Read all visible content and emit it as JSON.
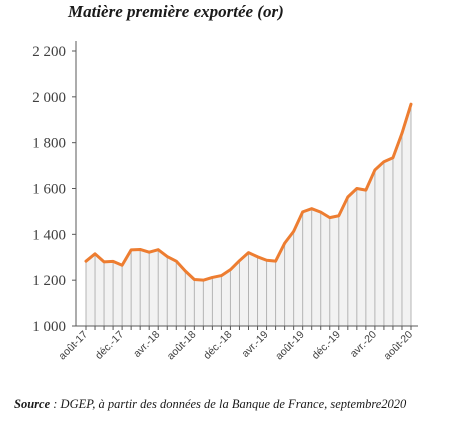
{
  "chart_data": {
    "type": "area",
    "title": "Matière première exportée (or)",
    "xlabel": "",
    "ylabel": "",
    "ylim": [
      1000,
      2200
    ],
    "yticks": [
      1000,
      1200,
      1400,
      1600,
      1800,
      2000,
      2200
    ],
    "ytick_labels": [
      "1 000",
      "1 200",
      "1 400",
      "1 600",
      "1 800",
      "2 000",
      "2 200"
    ],
    "categories": [
      "août-17",
      "sept.-17",
      "oct.-17",
      "nov.-17",
      "déc.-17",
      "janv.-18",
      "févr.-18",
      "mars-18",
      "avr.-18",
      "mai-18",
      "juin-18",
      "juil.-18",
      "août-18",
      "sept.-18",
      "oct.-18",
      "nov.-18",
      "déc.-18",
      "janv.-19",
      "févr.-19",
      "mars-19",
      "avr.-19",
      "mai-19",
      "juin-19",
      "juil.-19",
      "août-19",
      "sept.-19",
      "oct.-19",
      "nov.-19",
      "déc.-19",
      "janv.-20",
      "févr.-20",
      "mars-20",
      "avr.-20",
      "mai-20",
      "juin-20",
      "juil.-20",
      "août-20"
    ],
    "xtick_labels": [
      "août-17",
      "déc.-17",
      "avr.-18",
      "août-18",
      "déc.-18",
      "avr.-19",
      "août-19",
      "déc.-19",
      "avr.-20",
      "août-20"
    ],
    "series": [
      {
        "values": [
          1283,
          1315,
          1280,
          1282,
          1265,
          1332,
          1334,
          1322,
          1333,
          1303,
          1283,
          1240,
          1203,
          1200,
          1212,
          1220,
          1246,
          1285,
          1320,
          1302,
          1287,
          1283,
          1361,
          1413,
          1498,
          1512,
          1497,
          1473,
          1481,
          1563,
          1600,
          1593,
          1681,
          1717,
          1734,
          1841,
          1968
        ]
      }
    ],
    "colors": {
      "line": "#ED7D31",
      "fill": "#F2F2F2",
      "drop_lines": "#B4B4B4",
      "axis": "#595959"
    },
    "grid": false,
    "legend": "none"
  },
  "source": {
    "label": "Source",
    "text": " : DGEP, à partir des données de la Banque de France, septembre2020"
  }
}
